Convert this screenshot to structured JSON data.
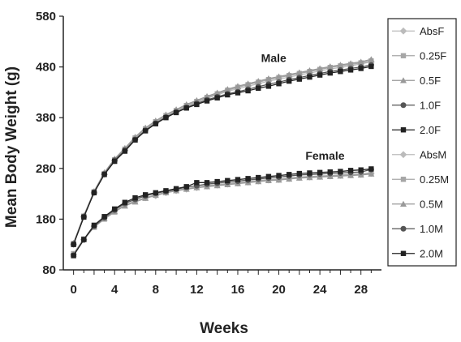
{
  "chart_data": {
    "type": "line",
    "xlabel": "Weeks",
    "ylabel": "Mean Body Weight (g)",
    "xlim": [
      -1,
      30
    ],
    "ylim": [
      80,
      580
    ],
    "xticks": [
      0,
      4,
      8,
      12,
      16,
      20,
      24,
      28
    ],
    "yticks": [
      80,
      180,
      280,
      380,
      480,
      580
    ],
    "grid": false,
    "legend_position": "right",
    "annotations": [
      {
        "text": "Male",
        "x": 19.5,
        "y": 490
      },
      {
        "text": "Female",
        "x": 24.5,
        "y": 297
      }
    ],
    "x": [
      0,
      1,
      2,
      3,
      4,
      5,
      6,
      7,
      8,
      9,
      10,
      11,
      12,
      13,
      14,
      15,
      16,
      17,
      18,
      19,
      20,
      21,
      22,
      23,
      24,
      25,
      26,
      27,
      28,
      29
    ],
    "series": [
      {
        "name": "AbsF",
        "group": "female",
        "color": "#bbbbbb",
        "marker": "diamond",
        "values": [
          110,
          140,
          166,
          182,
          196,
          208,
          216,
          222,
          226,
          232,
          236,
          239,
          242,
          245,
          247,
          249,
          251,
          253,
          255,
          257,
          258,
          260,
          262,
          263,
          264,
          265,
          266,
          267,
          268,
          270
        ]
      },
      {
        "name": "0.25F",
        "group": "female",
        "color": "#a6a6a6",
        "marker": "square",
        "values": [
          112,
          141,
          164,
          180,
          194,
          207,
          215,
          222,
          228,
          233,
          237,
          240,
          243,
          246,
          248,
          250,
          252,
          254,
          256,
          258,
          259,
          261,
          263,
          264,
          265,
          266,
          267,
          268,
          269,
          271
        ]
      },
      {
        "name": "0.5F",
        "group": "female",
        "color": "#999999",
        "marker": "triangle",
        "values": [
          111,
          140,
          165,
          181,
          195,
          206,
          214,
          221,
          227,
          232,
          236,
          239,
          242,
          244,
          246,
          248,
          250,
          252,
          254,
          256,
          257,
          259,
          261,
          262,
          263,
          264,
          265,
          266,
          267,
          269
        ]
      },
      {
        "name": "1.0F",
        "group": "female",
        "color": "#555555",
        "marker": "circle",
        "values": [
          109,
          139,
          166,
          183,
          198,
          211,
          219,
          226,
          231,
          235,
          239,
          243,
          246,
          249,
          251,
          253,
          255,
          257,
          259,
          261,
          263,
          265,
          267,
          268,
          269,
          270,
          271,
          272,
          273,
          278
        ]
      },
      {
        "name": "2.0F",
        "group": "female",
        "color": "#222222",
        "marker": "square",
        "values": [
          108,
          140,
          168,
          185,
          200,
          213,
          222,
          228,
          232,
          236,
          240,
          244,
          252,
          252,
          254,
          256,
          258,
          260,
          262,
          264,
          266,
          268,
          270,
          271,
          272,
          273,
          274,
          276,
          277,
          279
        ]
      },
      {
        "name": "AbsM",
        "group": "male",
        "color": "#bbbbbb",
        "marker": "diamond",
        "values": [
          130,
          185,
          232,
          268,
          295,
          315,
          338,
          356,
          370,
          382,
          392,
          402,
          410,
          418,
          425,
          432,
          437,
          442,
          447,
          452,
          456,
          460,
          464,
          468,
          472,
          476,
          479,
          482,
          486,
          490
        ]
      },
      {
        "name": "0.25M",
        "group": "male",
        "color": "#a6a6a6",
        "marker": "square",
        "values": [
          132,
          186,
          234,
          270,
          297,
          318,
          340,
          358,
          372,
          384,
          394,
          404,
          412,
          420,
          427,
          434,
          440,
          445,
          450,
          455,
          459,
          463,
          467,
          471,
          475,
          479,
          482,
          485,
          488,
          492
        ]
      },
      {
        "name": "0.5M",
        "group": "male",
        "color": "#999999",
        "marker": "triangle",
        "values": [
          133,
          187,
          235,
          272,
          299,
          320,
          342,
          360,
          374,
          386,
          396,
          406,
          414,
          422,
          429,
          436,
          442,
          447,
          452,
          457,
          461,
          465,
          469,
          473,
          477,
          481,
          484,
          487,
          490,
          495
        ]
      },
      {
        "name": "1.0M",
        "group": "male",
        "color": "#555555",
        "marker": "circle",
        "values": [
          131,
          185,
          233,
          269,
          296,
          316,
          337,
          355,
          369,
          381,
          391,
          400,
          408,
          415,
          421,
          427,
          431,
          436,
          441,
          446,
          450,
          455,
          459,
          463,
          467,
          471,
          474,
          477,
          480,
          484
        ]
      },
      {
        "name": "2.0M",
        "group": "male",
        "color": "#222222",
        "marker": "square",
        "values": [
          130,
          184,
          232,
          268,
          294,
          314,
          336,
          354,
          368,
          380,
          390,
          399,
          406,
          413,
          419,
          425,
          429,
          433,
          438,
          442,
          447,
          452,
          456,
          460,
          464,
          468,
          471,
          474,
          477,
          481
        ]
      }
    ]
  }
}
